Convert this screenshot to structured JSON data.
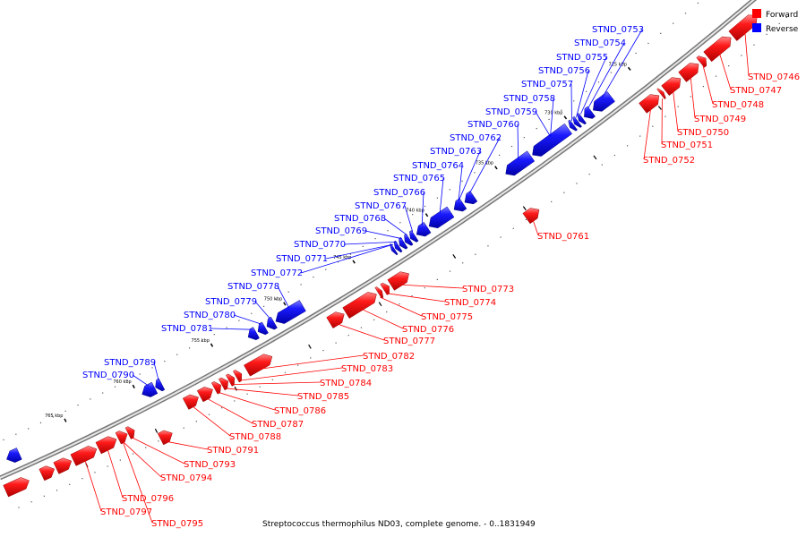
{
  "caption": "Streptococcus thermophilus ND03, complete genome. - 0..1831949",
  "legend": [
    {
      "label": "Forward",
      "color": "#ff0000"
    },
    {
      "label": "Reverse",
      "color": "#0000ff"
    }
  ],
  "ticks": [
    "725 kbp",
    "730 kbp",
    "735 kbp",
    "740 kbp",
    "745 kbp",
    "750 kbp",
    "755 kbp",
    "760 kbp",
    "765 kbp"
  ],
  "genes_forward": [
    "STND_0746",
    "STND_0747",
    "STND_0748",
    "STND_0749",
    "STND_0750",
    "STND_0751",
    "STND_0752",
    "STND_0761",
    "STND_0773",
    "STND_0774",
    "STND_0775",
    "STND_0776",
    "STND_0777",
    "STND_0782",
    "STND_0783",
    "STND_0784",
    "STND_0785",
    "STND_0786",
    "STND_0787",
    "STND_0788",
    "STND_0791",
    "STND_0793",
    "STND_0794",
    "STND_0796",
    "STND_0797",
    "STND_0795"
  ],
  "genes_reverse": [
    "STND_0753",
    "STND_0754",
    "STND_0755",
    "STND_0756",
    "STND_0757",
    "STND_0758",
    "STND_0759",
    "STND_0760",
    "STND_0762",
    "STND_0763",
    "STND_0764",
    "STND_0765",
    "STND_0766",
    "STND_0767",
    "STND_0768",
    "STND_0769",
    "STND_0770",
    "STND_0771",
    "STND_0772",
    "STND_0778",
    "STND_0779",
    "STND_0780",
    "STND_0781",
    "STND_0789",
    "STND_0790"
  ]
}
